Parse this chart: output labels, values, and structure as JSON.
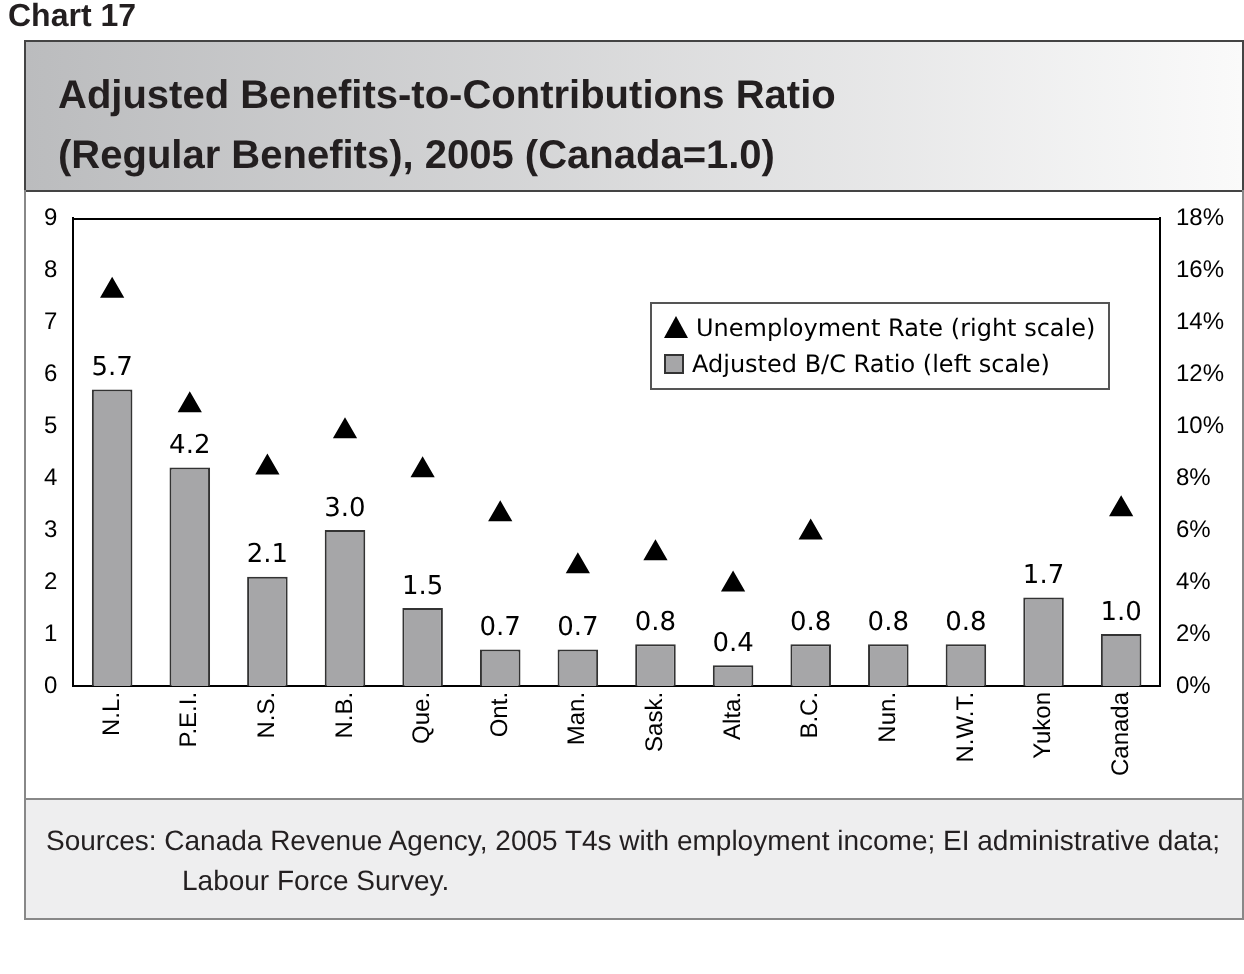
{
  "chart_data": {
    "type": "bar",
    "title": "Adjusted Benefits-to-Contributions Ratio (Regular Benefits), 2005 (Canada=1.0)",
    "categories": [
      "N.L.",
      "P.E.I.",
      "N.S.",
      "N.B.",
      "Que.",
      "Ont.",
      "Man.",
      "Sask.",
      "Alta.",
      "B.C.",
      "Nun.",
      "N.W.T.",
      "Yukon",
      "Canada"
    ],
    "series": [
      {
        "name": "Unemployment Rate (right scale)",
        "type": "scatter",
        "axis": "y2",
        "marker": "triangle",
        "color": "#000000",
        "values": [
          15.2,
          10.8,
          8.4,
          9.8,
          8.3,
          6.6,
          4.6,
          5.1,
          3.9,
          5.9,
          null,
          null,
          null,
          6.8
        ]
      },
      {
        "name": "Adjusted B/C Ratio (left scale)",
        "color": "#a6a6a8",
        "values": [
          5.7,
          4.2,
          2.1,
          3.0,
          1.5,
          0.7,
          0.7,
          0.8,
          0.4,
          0.8,
          0.8,
          0.8,
          1.7,
          1.0
        ],
        "value_labels": [
          "5.7",
          "4.2",
          "2.1",
          "3.0",
          "1.5",
          "0.7",
          "0.7",
          "0.8",
          "0.4",
          "0.8",
          "0.8",
          "0.8",
          "1.7",
          "1.0"
        ]
      }
    ],
    "ylim": [
      0,
      9
    ],
    "yticks": [
      0,
      1,
      2,
      3,
      4,
      5,
      6,
      7,
      8,
      9
    ],
    "y2lim": [
      0,
      18
    ],
    "y2ticks": [
      {
        "value": 0,
        "label": "0%"
      },
      {
        "value": 2,
        "label": "2%"
      },
      {
        "value": 4,
        "label": "4%"
      },
      {
        "value": 6,
        "label": "6%"
      },
      {
        "value": 8,
        "label": "8%"
      },
      {
        "value": 10,
        "label": "10%"
      },
      {
        "value": 12,
        "label": "12%"
      },
      {
        "value": 14,
        "label": "14%"
      },
      {
        "value": 16,
        "label": "16%"
      },
      {
        "value": 18,
        "label": "18%"
      }
    ],
    "grid": false,
    "legend": "top right",
    "annotations": [
      "Chart 17",
      "Sources: Canada Revenue Agency, 2005 T4s with employment income; EI administrative data; Labour Force Survey."
    ]
  }
}
